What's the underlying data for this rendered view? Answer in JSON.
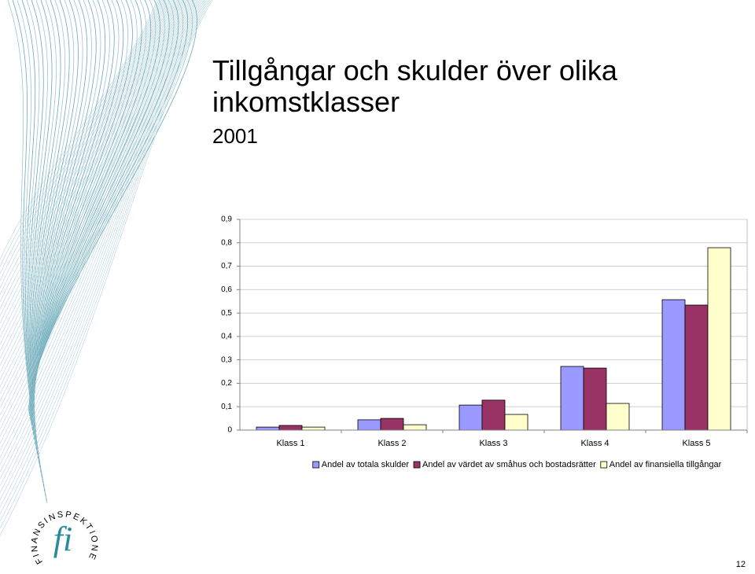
{
  "chart_data": {
    "type": "bar",
    "title": "Tillgångar och skulder över olika inkomstklasser",
    "subtitle": "2001",
    "categories": [
      "Klass 1",
      "Klass 2",
      "Klass 3",
      "Klass 4",
      "Klass 5"
    ],
    "series": [
      {
        "name": "Andel av totala skulder",
        "color": "#9999ff",
        "values": [
          0.013,
          0.044,
          0.107,
          0.272,
          0.557
        ]
      },
      {
        "name": "Andel av värdet av småhus och bostadsrätter",
        "color": "#993366",
        "values": [
          0.02,
          0.05,
          0.128,
          0.265,
          0.534
        ]
      },
      {
        "name": "Andel av finansiella tillgångar",
        "color": "#ffffcc",
        "values": [
          0.013,
          0.023,
          0.067,
          0.114,
          0.779
        ]
      }
    ],
    "ylim": [
      0,
      0.9
    ],
    "yticks": [
      0,
      {
        "value": 0.1,
        "label": "0,1"
      },
      {
        "value": 0.2,
        "label": "0,2"
      },
      {
        "value": 0.3,
        "label": "0,3"
      },
      {
        "value": 0.4,
        "label": "0,4"
      },
      {
        "value": 0.5,
        "label": "0,5"
      },
      {
        "value": 0.6,
        "label": "0,6"
      },
      {
        "value": 0.7,
        "label": "0,7"
      },
      {
        "value": 0.8,
        "label": "0,8"
      },
      {
        "value": {
          "value": 0.9,
          "label": "0,9"
        },
        "label": "0,9"
      }
    ],
    "grid": true,
    "legend": "bottom"
  },
  "logo": {
    "ring": "FINANSINSPEKTIONEN",
    "mark": "fi"
  },
  "page_number": "12"
}
